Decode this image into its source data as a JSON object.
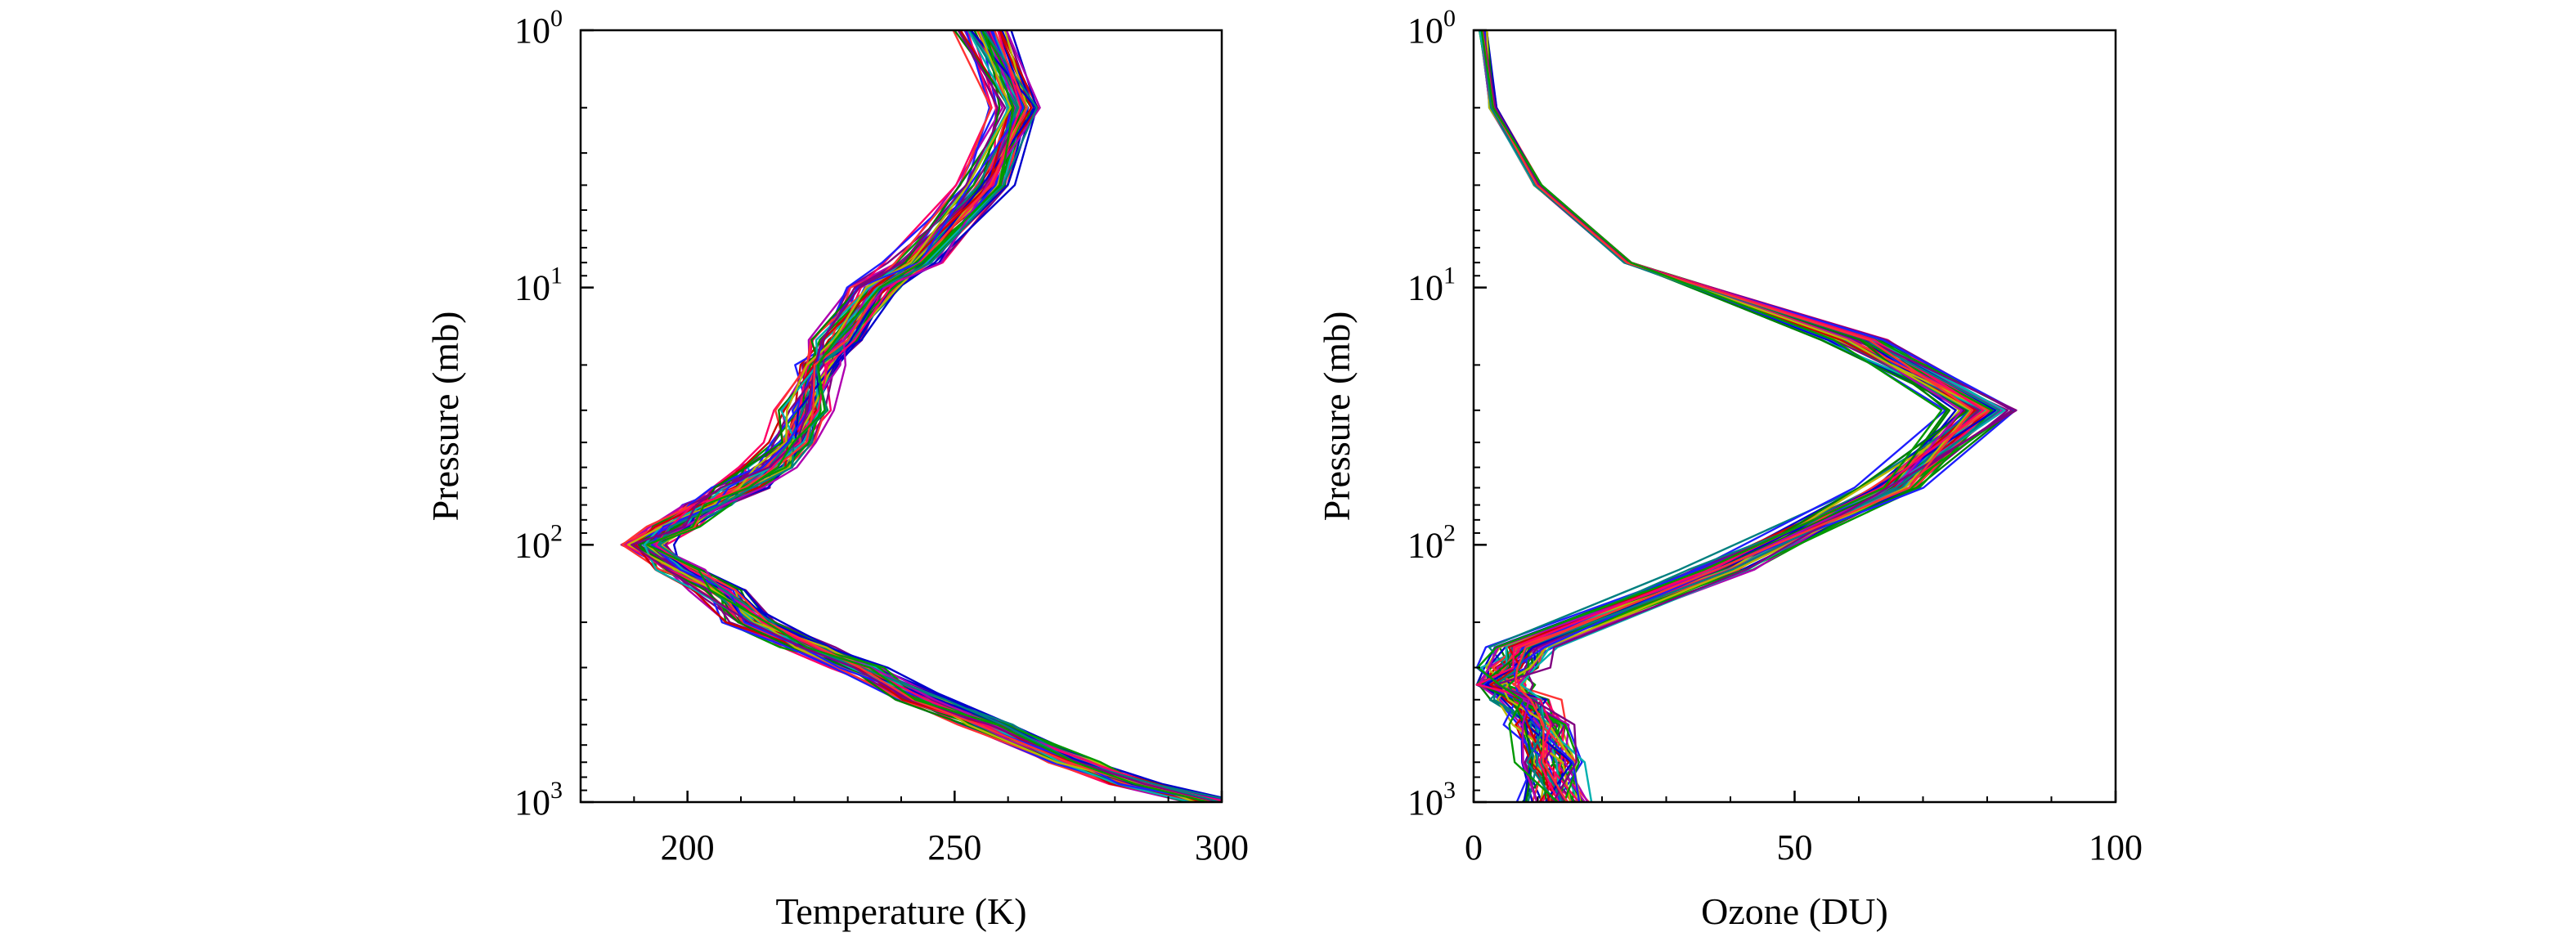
{
  "figure_title": "",
  "chart_data": [
    {
      "type": "line",
      "panel": "left",
      "xlabel": "Temperature (K)",
      "ylabel": "Pressure (mb)",
      "xlim": [
        180,
        300
      ],
      "ylim": [
        1,
        1000
      ],
      "yscale": "log",
      "yinverted": true,
      "xticks": [
        {
          "label": "200",
          "value": 200
        },
        {
          "label": "250",
          "value": 250
        },
        {
          "label": "300",
          "value": 300
        }
      ],
      "yticks": [
        {
          "base": "10",
          "exp": "0",
          "value": 1
        },
        {
          "base": "10",
          "exp": "1",
          "value": 10
        },
        {
          "base": "10",
          "exp": "2",
          "value": 100
        },
        {
          "base": "10",
          "exp": "3",
          "value": 1000
        }
      ],
      "pressure_levels": [
        1,
        2,
        4,
        8,
        10,
        16,
        20,
        30,
        40,
        50,
        60,
        70,
        85,
        100,
        125,
        150,
        200,
        250,
        300,
        400,
        500,
        700,
        850,
        1000
      ],
      "series_count": 60,
      "base_profile": [
        255,
        262,
        256,
        242,
        235,
        228,
        224,
        222,
        220,
        215,
        210,
        203,
        198,
        192,
        198,
        206,
        212,
        222,
        232,
        244,
        256,
        272,
        284,
        298
      ],
      "grid": false,
      "legend": "none"
    },
    {
      "type": "line",
      "panel": "right",
      "xlabel": "Ozone (DU)",
      "ylabel": "Pressure (mb)",
      "xlim": [
        0,
        100
      ],
      "ylim": [
        1,
        1000
      ],
      "yscale": "log",
      "yinverted": true,
      "xticks": [
        {
          "label": "0",
          "value": 0
        },
        {
          "label": "50",
          "value": 50
        },
        {
          "label": "100",
          "value": 100
        }
      ],
      "yticks": [
        {
          "base": "10",
          "exp": "0",
          "value": 1
        },
        {
          "base": "10",
          "exp": "1",
          "value": 10
        },
        {
          "base": "10",
          "exp": "2",
          "value": 100
        },
        {
          "base": "10",
          "exp": "3",
          "value": 1000
        }
      ],
      "pressure_levels": [
        1,
        2,
        4,
        8,
        16,
        30,
        60,
        125,
        250,
        300,
        350,
        400,
        500,
        700,
        1000
      ],
      "series_count": 60,
      "base_profile": [
        1.5,
        3,
        10,
        24,
        60,
        79,
        65,
        38,
        8,
        6,
        4,
        8,
        10,
        12,
        13
      ],
      "grid": false,
      "legend": "none"
    }
  ],
  "series_colors": [
    "#0000cc",
    "#cc0000",
    "#008000",
    "#00b0b0",
    "#b000b0",
    "#b8b800",
    "#1e1eff",
    "#ff0066",
    "#008080",
    "#800080",
    "#ff3333",
    "#009900"
  ]
}
